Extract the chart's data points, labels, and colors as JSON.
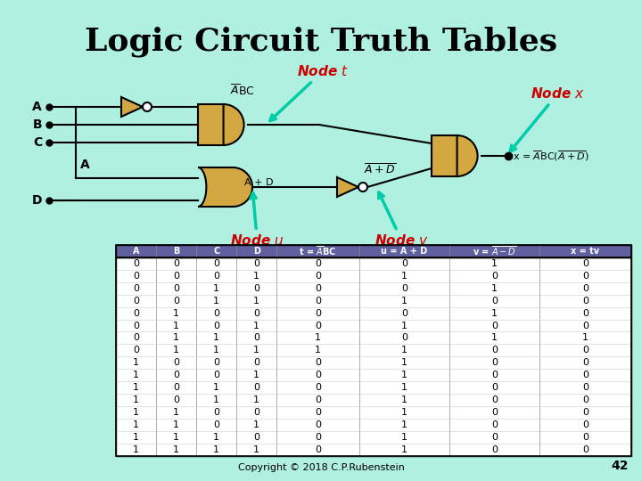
{
  "title": "Logic Circuit Truth Tables",
  "title_fontsize": 26,
  "bg_color": "#b0f0e0",
  "circuit_bg": "#c8e8ff",
  "gate_color": "#d4a840",
  "gate_edge": "#000000",
  "wire_color": "#000000",
  "arrow_color": "#00ccaa",
  "node_label_color": "#cc0000",
  "header_bg": "#6060a0",
  "header_fg": "#ffffff",
  "table_fg": "#000000",
  "copyright": "Copyright © 2018 C.P.Rubenstein",
  "page_num": "42",
  "rows": [
    [
      0,
      0,
      0,
      0,
      0,
      0,
      1,
      0
    ],
    [
      0,
      0,
      0,
      1,
      0,
      1,
      0,
      0
    ],
    [
      0,
      0,
      1,
      0,
      0,
      0,
      1,
      0
    ],
    [
      0,
      0,
      1,
      1,
      0,
      1,
      0,
      0
    ],
    [
      0,
      1,
      0,
      0,
      0,
      0,
      1,
      0
    ],
    [
      0,
      1,
      0,
      1,
      0,
      1,
      0,
      0
    ],
    [
      0,
      1,
      1,
      0,
      1,
      0,
      1,
      1
    ],
    [
      0,
      1,
      1,
      1,
      1,
      1,
      0,
      0
    ],
    [
      1,
      0,
      0,
      0,
      0,
      1,
      0,
      0
    ],
    [
      1,
      0,
      0,
      1,
      0,
      1,
      0,
      0
    ],
    [
      1,
      0,
      1,
      0,
      0,
      1,
      0,
      0
    ],
    [
      1,
      0,
      1,
      1,
      0,
      1,
      0,
      0
    ],
    [
      1,
      1,
      0,
      0,
      0,
      1,
      0,
      0
    ],
    [
      1,
      1,
      0,
      1,
      0,
      1,
      0,
      0
    ],
    [
      1,
      1,
      1,
      0,
      0,
      1,
      0,
      0
    ],
    [
      1,
      1,
      1,
      1,
      0,
      1,
      0,
      0
    ]
  ]
}
